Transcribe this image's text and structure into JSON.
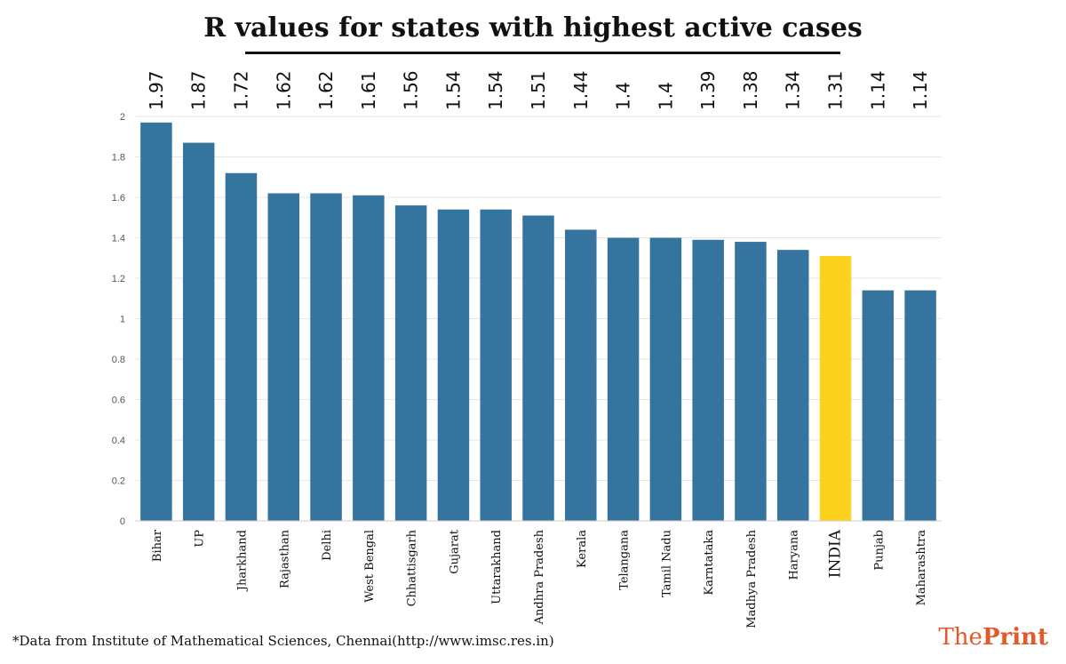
{
  "title": "R values for states with highest active cases",
  "footnote": "*Data from Institute of Mathematical Sciences, Chennai(http://www.imsc.res.in)",
  "brand": {
    "part1": "The",
    "part2": "Print"
  },
  "colors": {
    "bar": "#3674a0",
    "highlight": "#fcd21e",
    "grid": "#e6e6e6",
    "text": "#111111",
    "brand": "#e2592b"
  },
  "chart_data": {
    "type": "bar",
    "title": "R values for states with highest active cases",
    "xlabel": "",
    "ylabel": "",
    "ylim": [
      0,
      2
    ],
    "yticks": [
      "0",
      "0.2",
      "0.4",
      "0.6",
      "0.8",
      "1",
      "1.2",
      "1.4",
      "1.6",
      "1.8",
      "2"
    ],
    "grid": true,
    "highlight_category": "INDIA",
    "categories": [
      "Bihar",
      "UP",
      "Jharkhand",
      "Rajasthan",
      "Delhi",
      "West Bengal",
      "Chhattisgarh",
      "Gujarat",
      "Uttarakhand",
      "Andhra Pradesh",
      "Kerala",
      "Telangana",
      "Tamil Nadu",
      "Karntataka",
      "Madhya Pradesh",
      "Haryana",
      "INDIA",
      "Punjab",
      "Maharashtra"
    ],
    "values": [
      1.97,
      1.87,
      1.72,
      1.62,
      1.62,
      1.61,
      1.56,
      1.54,
      1.54,
      1.51,
      1.44,
      1.4,
      1.4,
      1.39,
      1.38,
      1.34,
      1.31,
      1.14,
      1.14
    ],
    "value_labels": [
      "1.97",
      "1.87",
      "1.72",
      "1.62",
      "1.62",
      "1.61",
      "1.56",
      "1.54",
      "1.54",
      "1.51",
      "1.44",
      "1.4",
      "1.4",
      "1.39",
      "1.38",
      "1.34",
      "1.31",
      "1.14",
      "1.14"
    ]
  }
}
